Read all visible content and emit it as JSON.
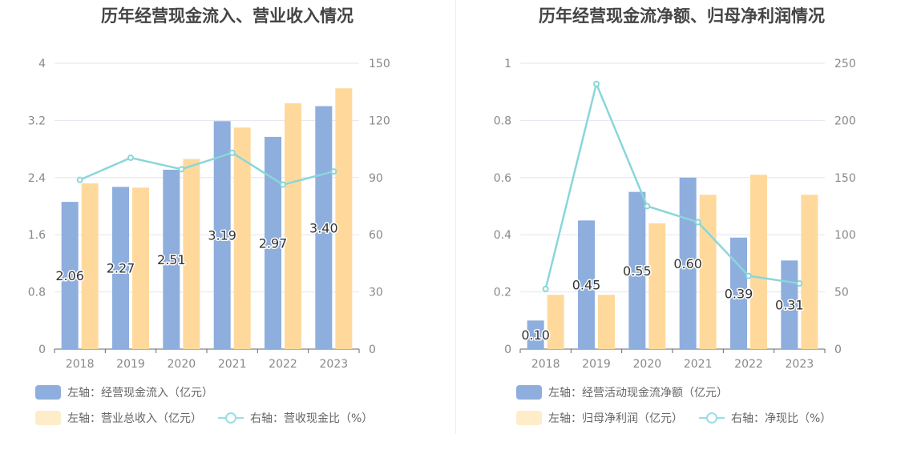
{
  "chart_data": [
    {
      "type": "bar",
      "title": "历年经营现金流入、营业收入情况",
      "categories": [
        "2018",
        "2019",
        "2020",
        "2021",
        "2022",
        "2023"
      ],
      "left_axis": {
        "ticks": [
          "0",
          "0.8",
          "1.6",
          "2.4",
          "3.2",
          "4"
        ],
        "range": [
          0,
          4
        ]
      },
      "right_axis": {
        "ticks": [
          "0",
          "30",
          "60",
          "90",
          "120",
          "150"
        ],
        "range": [
          0,
          150
        ]
      },
      "series": [
        {
          "name": "左轴：经营现金流入（亿元）",
          "axis": "left",
          "type": "bar",
          "color": "#8eaedd",
          "values": [
            2.06,
            2.27,
            2.51,
            3.19,
            2.97,
            3.4
          ],
          "labels": [
            "2.06",
            "2.27",
            "2.51",
            "3.19",
            "2.97",
            "3.40"
          ]
        },
        {
          "name": "左轴：营业总收入（亿元）",
          "axis": "left",
          "type": "bar",
          "color": "#ffd99c",
          "legend_color": "#ffecc9",
          "values": [
            2.32,
            2.26,
            2.66,
            3.1,
            3.44,
            3.65
          ]
        },
        {
          "name": "右轴：营收现金比（%）",
          "axis": "right",
          "type": "line",
          "color": "#8ad6da",
          "legend_color": "#98dfe4",
          "values": [
            88.8,
            100.4,
            94.4,
            103.0,
            86.3,
            93.2
          ]
        }
      ],
      "grid": true
    },
    {
      "type": "bar",
      "title": "历年经营现金流净额、归母净利润情况",
      "categories": [
        "2018",
        "2019",
        "2020",
        "2021",
        "2022",
        "2023"
      ],
      "left_axis": {
        "ticks": [
          "0",
          "0.2",
          "0.4",
          "0.6",
          "0.8",
          "1"
        ],
        "range": [
          0,
          1
        ]
      },
      "right_axis": {
        "ticks": [
          "0",
          "50",
          "100",
          "150",
          "200",
          "250"
        ],
        "range": [
          0,
          250
        ]
      },
      "series": [
        {
          "name": "左轴：经营活动现金流净额（亿元）",
          "axis": "left",
          "type": "bar",
          "color": "#8eaedd",
          "values": [
            0.1,
            0.45,
            0.55,
            0.6,
            0.39,
            0.31
          ],
          "labels": [
            "0.10",
            "0.45",
            "0.55",
            "0.60",
            "0.39",
            "0.31"
          ]
        },
        {
          "name": "左轴：归母净利润（亿元）",
          "axis": "left",
          "type": "bar",
          "color": "#ffd99c",
          "legend_color": "#ffecc9",
          "values": [
            0.19,
            0.19,
            0.44,
            0.54,
            0.61,
            0.54
          ]
        },
        {
          "name": "右轴：净现比（%）",
          "axis": "right",
          "type": "line",
          "color": "#8ad6da",
          "legend_color": "#98dfe4",
          "values": [
            52.6,
            232,
            125,
            111,
            64,
            57.4
          ]
        }
      ],
      "grid": true
    }
  ]
}
